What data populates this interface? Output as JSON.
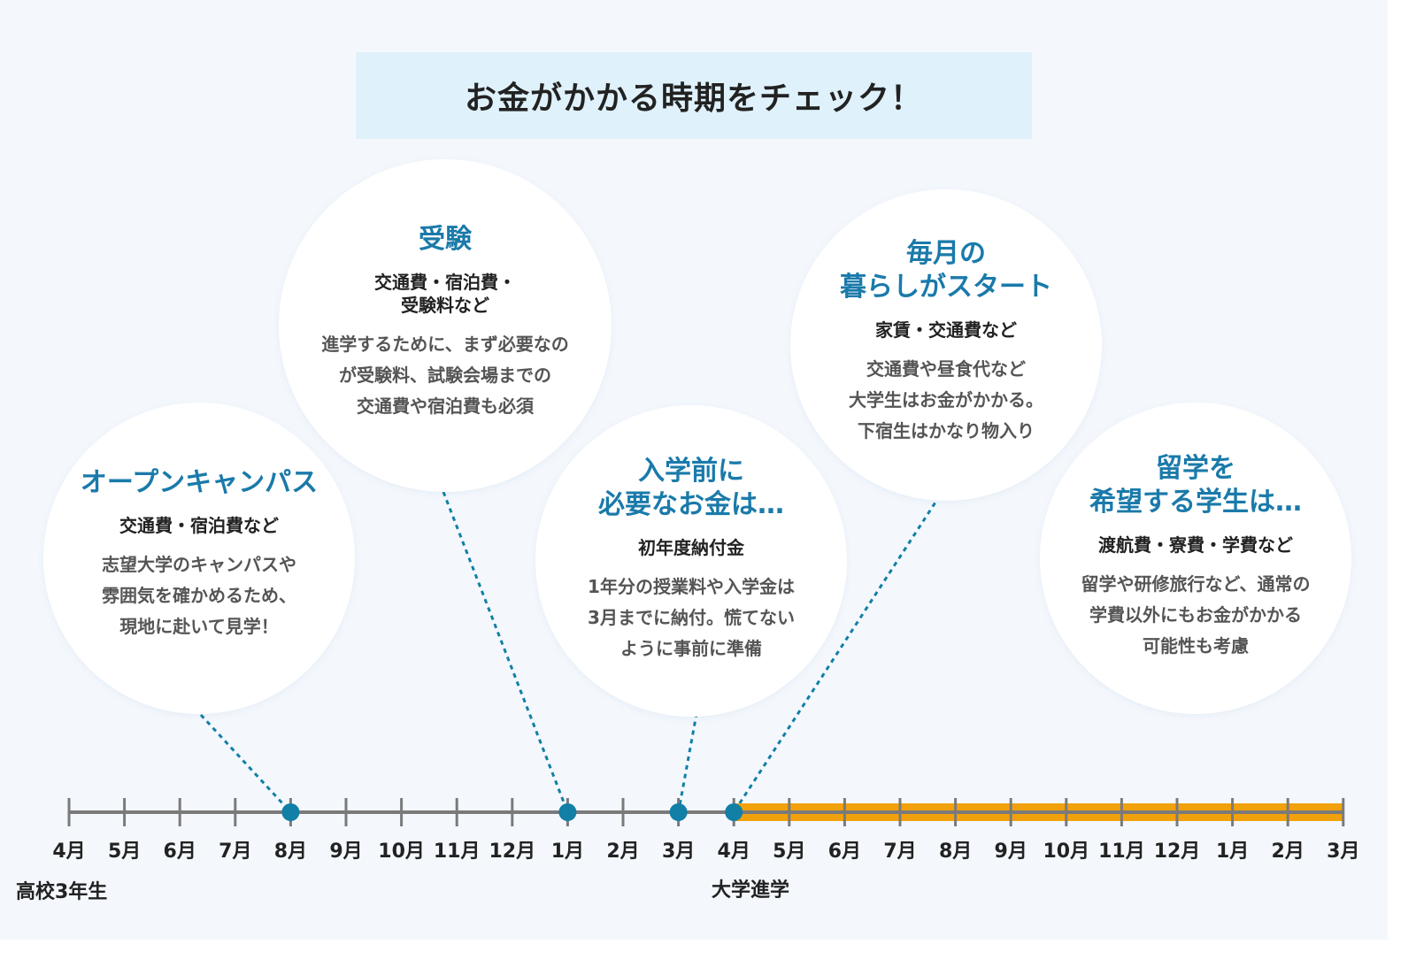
{
  "header": {
    "title": "お金がかかる時期をチェック！"
  },
  "bubbles": {
    "opencampus": {
      "title": "オープンキャンパス",
      "subtitle": "交通費・宿泊費など",
      "description": "志望大学のキャンパスや\n雰囲気を確かめるため、\n現地に赴いて見学！"
    },
    "exam": {
      "title": "受験",
      "subtitle": "交通費・宿泊費・\n受験料など",
      "description": "進学するために、まず必要なの\nが受験料、試験会場までの\n交通費や宿泊費も必須"
    },
    "prepay": {
      "title": "入学前に\n必要なお金は…",
      "subtitle": "初年度納付金",
      "description": "1年分の授業料や入学金は\n3月までに納付。慌てない\nように事前に準備"
    },
    "monthly": {
      "title": "毎月の\n暮らしがスタート",
      "subtitle": "家賃・交通費など",
      "description": "交通費や昼食代など\n大学生はお金がかかる。\n下宿生はかなり物入り"
    },
    "abroad": {
      "title": "留学を\n希望する学生は…",
      "subtitle": "渡航費・寮費・学費など",
      "description": "留学や研修旅行など、通常の\n学費以外にもお金がかかる\n可能性も考慮"
    }
  },
  "timeline": {
    "months": [
      "4月",
      "5月",
      "6月",
      "7月",
      "8月",
      "9月",
      "10月",
      "11月",
      "12月",
      "1月",
      "2月",
      "3月",
      "4月",
      "5月",
      "6月",
      "7月",
      "8月",
      "9月",
      "10月",
      "11月",
      "12月",
      "1月",
      "2月",
      "3月"
    ],
    "milestones": [
      {
        "month_index": 4,
        "event": "opencampus"
      },
      {
        "month_index": 9,
        "event": "exam"
      },
      {
        "month_index": 11,
        "event": "prepay"
      },
      {
        "month_index": 12,
        "event": "monthly"
      }
    ],
    "highlight_from_index": 12,
    "highlight_to_index": 23,
    "year_labels": {
      "high_school": "高校3年生",
      "university": "大学進学"
    }
  },
  "colors": {
    "accent_blue": "#1a7aaa",
    "dot_blue": "#117fa6",
    "timeline_gray": "#7a7a7a",
    "highlight_orange": "#f1a10c",
    "header_bg": "#dff1fb",
    "panel_bg": "#f4f8fd"
  }
}
